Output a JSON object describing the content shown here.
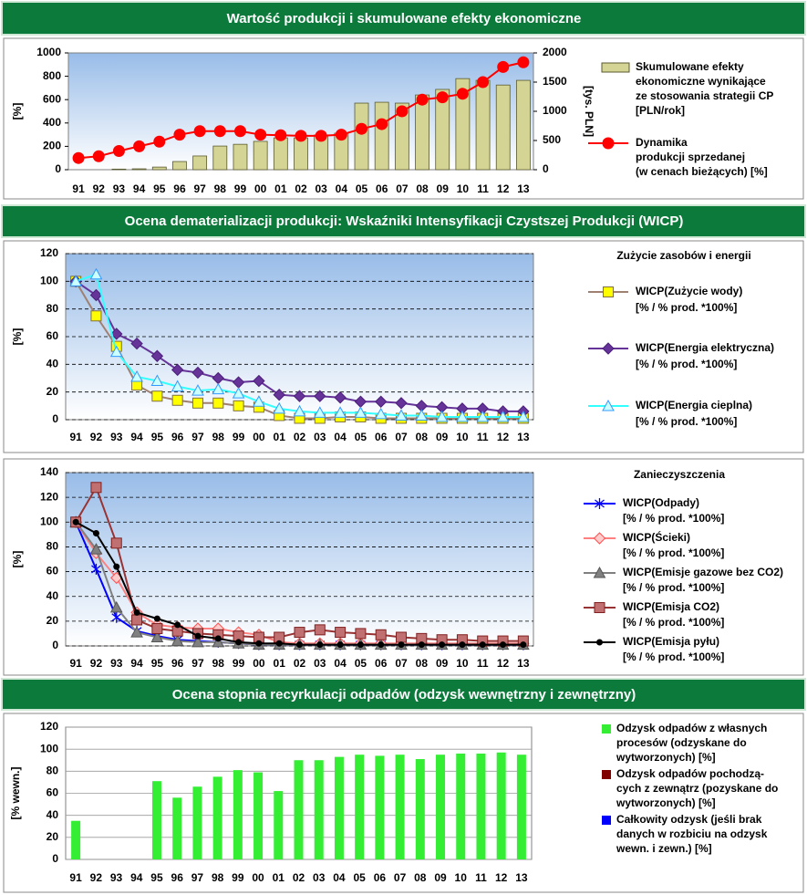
{
  "headers": [
    "Wartość produkcji i skumulowane efekty ekonomiczne",
    "Ocena dematerializacji produkcji: Wskaźniki Intensyfikacji Czystszej Produkcji (WICP)",
    "Ocena stopnia recyrkulacji odpadów (odzysk wewnętrzny i zewnętrzny)"
  ],
  "chart_data": [
    {
      "type": "combo",
      "ylabel": "[%]",
      "y2label": "[tys. PLN]",
      "grid": false,
      "background": "gradient",
      "categories": [
        "91",
        "92",
        "93",
        "94",
        "95",
        "96",
        "97",
        "98",
        "99",
        "00",
        "01",
        "02",
        "03",
        "04",
        "05",
        "06",
        "07",
        "08",
        "09",
        "10",
        "11",
        "12",
        "13"
      ],
      "ylim": [
        0,
        1000
      ],
      "yticks": [
        0,
        200,
        400,
        600,
        800,
        1000
      ],
      "y2lim": [
        0,
        2000
      ],
      "y2ticks": [
        0,
        500,
        1000,
        1500,
        2000
      ],
      "series": [
        {
          "name": "Skumulowane efekty\nekonomiczne wynikające\nze stosowania strategii CP\n[PLN/rok]",
          "type": "bar",
          "axis": "y2",
          "color": "#d4d494",
          "edge": "#5a5a30",
          "values": [
            0,
            0,
            10,
            15,
            45,
            140,
            235,
            405,
            435,
            485,
            545,
            545,
            595,
            625,
            1140,
            1155,
            1140,
            1280,
            1375,
            1560,
            1530,
            1450,
            1530
          ]
        },
        {
          "name": "Dynamika\nprodukcji sprzedanej\n(w cenach bieżących) [%]",
          "type": "line",
          "axis": "y",
          "color": "#ff0000",
          "marker": "circle",
          "marker_fill": "#ff0000",
          "marker_edge": "#ff0000",
          "values": [
            100,
            115,
            160,
            200,
            240,
            300,
            330,
            330,
            330,
            300,
            295,
            290,
            290,
            300,
            350,
            390,
            500,
            600,
            620,
            650,
            750,
            880,
            920
          ]
        }
      ]
    },
    {
      "type": "line",
      "title": "Zużycie zasobów i energii",
      "ylabel": "[%]",
      "grid": true,
      "background": "gradient",
      "categories": [
        "91",
        "92",
        "93",
        "94",
        "95",
        "96",
        "97",
        "98",
        "99",
        "00",
        "01",
        "02",
        "03",
        "04",
        "05",
        "06",
        "07",
        "08",
        "09",
        "10",
        "11",
        "12",
        "13"
      ],
      "ylim": [
        0,
        120
      ],
      "yticks": [
        0,
        20,
        40,
        60,
        80,
        100,
        120
      ],
      "series": [
        {
          "name": "WICP(Zużycie wody)\n[% / % prod. *100%]",
          "color": "#a08070",
          "marker": "square",
          "marker_fill": "#ffff00",
          "marker_edge": "#807040",
          "values": [
            100,
            75,
            53,
            25,
            17,
            14,
            12,
            12,
            10,
            9,
            3,
            1,
            1,
            2,
            2,
            1,
            1,
            1,
            1,
            1,
            1,
            1,
            1
          ]
        },
        {
          "name": "WICP(Energia elektryczna)\n[% / % prod. *100%]",
          "color": "#663399",
          "marker": "diamond",
          "marker_fill": "#663399",
          "marker_edge": "#4b1f7a",
          "values": [
            100,
            90,
            62,
            55,
            46,
            36,
            34,
            30,
            27,
            28,
            18,
            17,
            17,
            16,
            13,
            13,
            12,
            10,
            9,
            8,
            8,
            6,
            6
          ]
        },
        {
          "name": "WICP(Energia cieplna)\n[% / % prod. *100%]",
          "color": "#33ffff",
          "marker": "triangle",
          "marker_fill": "#ccffff",
          "marker_edge": "#3399ff",
          "values": [
            100,
            105,
            49,
            31,
            28,
            24,
            21,
            22,
            19,
            13,
            8,
            6,
            5,
            5,
            5,
            4,
            3,
            3,
            2,
            2,
            2,
            2,
            2
          ]
        }
      ]
    },
    {
      "type": "line",
      "title": "Zanieczyszczenia",
      "ylabel": "[%]",
      "grid": true,
      "background": "gradient",
      "categories": [
        "91",
        "92",
        "93",
        "94",
        "95",
        "96",
        "97",
        "98",
        "99",
        "00",
        "01",
        "02",
        "03",
        "04",
        "05",
        "06",
        "07",
        "08",
        "09",
        "10",
        "11",
        "12",
        "13"
      ],
      "ylim": [
        0,
        140
      ],
      "yticks": [
        0,
        20,
        40,
        60,
        80,
        100,
        120,
        140
      ],
      "series": [
        {
          "name": "WICP(Odpady)\n[% / % prod. *100%]",
          "color": "#0000ff",
          "marker": "star",
          "marker_fill": "#0000ff",
          "marker_edge": "#0000ff",
          "values": [
            100,
            62,
            23,
            12,
            8,
            5,
            4,
            3,
            2,
            1,
            1,
            1,
            1,
            1,
            1,
            1,
            1,
            1,
            1,
            1,
            1,
            1,
            1
          ]
        },
        {
          "name": "WICP(Ścieki)\n[% / % prod. *100%]",
          "color": "#ff8080",
          "marker": "diamond",
          "marker_fill": "#ffcccc",
          "marker_edge": "#ff5050",
          "values": [
            100,
            75,
            55,
            27,
            17,
            15,
            14,
            14,
            11,
            9,
            3,
            2,
            2,
            2,
            2,
            2,
            2,
            2,
            2,
            2,
            2,
            2,
            2
          ]
        },
        {
          "name": "WICP(Emisje gazowe bez CO2)\n[% / % prod. *100%]",
          "color": "#808080",
          "marker": "triangle",
          "marker_fill": "#808080",
          "marker_edge": "#555555",
          "values": [
            100,
            78,
            31,
            11,
            7,
            4,
            3,
            3,
            2,
            1,
            1,
            1,
            1,
            1,
            1,
            1,
            1,
            1,
            1,
            1,
            1,
            1,
            1
          ]
        },
        {
          "name": "WICP(Emisja CO2)\n[% / % prod. *100%]",
          "color": "#993333",
          "marker": "square",
          "marker_fill": "#c07070",
          "marker_edge": "#802020",
          "values": [
            100,
            128,
            83,
            21,
            14,
            12,
            10,
            9,
            8,
            7,
            7,
            11,
            13,
            11,
            10,
            9,
            7,
            6,
            5,
            5,
            4,
            4,
            4
          ]
        },
        {
          "name": "WICP(Emisja pyłu)\n[% / % prod. *100%]",
          "color": "#000000",
          "marker": "dot",
          "marker_fill": "#000000",
          "marker_edge": "#000000",
          "values": [
            100,
            91,
            64,
            27,
            22,
            17,
            8,
            6,
            3,
            2,
            2,
            1,
            1,
            1,
            1,
            1,
            1,
            1,
            1,
            1,
            1,
            1,
            1
          ]
        }
      ]
    },
    {
      "type": "bar",
      "ylabel": "[% wewn.]",
      "grid": true,
      "background": "white",
      "categories": [
        "91",
        "92",
        "93",
        "94",
        "95",
        "96",
        "97",
        "98",
        "99",
        "00",
        "01",
        "02",
        "03",
        "04",
        "05",
        "06",
        "07",
        "08",
        "09",
        "10",
        "11",
        "12",
        "13"
      ],
      "ylim": [
        0,
        120
      ],
      "yticks": [
        0,
        20,
        40,
        60,
        80,
        100,
        120
      ],
      "series": [
        {
          "name": "Odzysk odpadów z własnych\nprocesów (odzyskane do\nwytworzonych) [%]",
          "color": "#33ee33",
          "values": [
            35,
            null,
            null,
            null,
            71,
            56,
            66,
            75,
            81,
            79,
            62,
            90,
            90,
            93,
            95,
            94,
            95,
            91,
            95,
            96,
            96,
            97,
            95
          ]
        },
        {
          "name": "Odzysk odpadów pochodzą-\ncych z zewnątrz (pozyskane do\nwytworzonych) [%]",
          "color": "#800000",
          "values": [
            null,
            null,
            null,
            null,
            null,
            null,
            null,
            null,
            null,
            null,
            null,
            null,
            null,
            null,
            null,
            null,
            null,
            null,
            null,
            null,
            null,
            null,
            null
          ]
        },
        {
          "name": "Całkowity odzysk (jeśli brak\ndanych w rozbiciu na odzysk\nwewn. i zewn.) [%]",
          "color": "#0000ff",
          "values": [
            null,
            null,
            null,
            null,
            null,
            null,
            null,
            null,
            null,
            null,
            null,
            null,
            null,
            null,
            null,
            null,
            null,
            null,
            null,
            null,
            null,
            null,
            null
          ]
        }
      ]
    }
  ]
}
